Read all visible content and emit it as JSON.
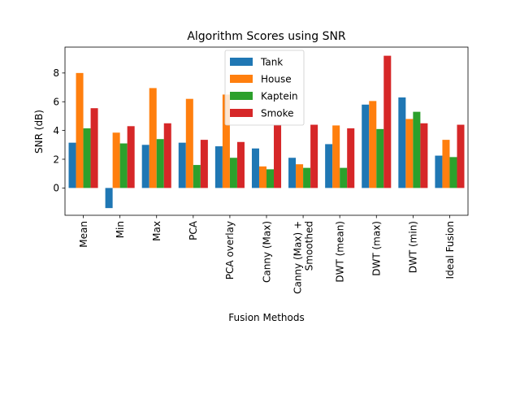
{
  "chart_data": {
    "type": "bar",
    "title": "Algorithm Scores using SNR",
    "xlabel": "Fusion Methods",
    "ylabel": "SNR (dB)",
    "ylim": [
      -1.9,
      9.8
    ],
    "yticks": [
      0,
      2,
      4,
      6,
      8
    ],
    "grid": false,
    "legend_position": "top-center",
    "categories": [
      [
        "Mean"
      ],
      [
        "Min"
      ],
      [
        "Max"
      ],
      [
        "PCA"
      ],
      [
        "PCA overlay"
      ],
      [
        "Canny (Max)"
      ],
      [
        "Canny (Max) +",
        "Smoothed"
      ],
      [
        "DWT (mean)"
      ],
      [
        "DWT (max)"
      ],
      [
        "DWT (min)"
      ],
      [
        "Ideal Fusion"
      ]
    ],
    "series": [
      {
        "name": "Tank",
        "color": "#1f77b4",
        "values": [
          3.15,
          -1.4,
          3.0,
          3.15,
          2.9,
          2.75,
          2.1,
          3.05,
          5.8,
          6.3,
          2.25
        ]
      },
      {
        "name": "House",
        "color": "#ff7f0e",
        "values": [
          8.0,
          3.85,
          6.95,
          6.2,
          6.5,
          1.5,
          1.65,
          4.35,
          6.05,
          4.8,
          3.35
        ]
      },
      {
        "name": "Kaptein",
        "color": "#2ca02c",
        "values": [
          4.15,
          3.1,
          3.4,
          1.6,
          2.1,
          1.3,
          1.4,
          1.4,
          4.1,
          5.3,
          2.15
        ]
      },
      {
        "name": "Smoke",
        "color": "#d62728",
        "values": [
          5.55,
          4.3,
          4.5,
          3.35,
          3.2,
          4.4,
          4.4,
          4.15,
          9.2,
          4.5,
          4.4
        ]
      }
    ]
  }
}
